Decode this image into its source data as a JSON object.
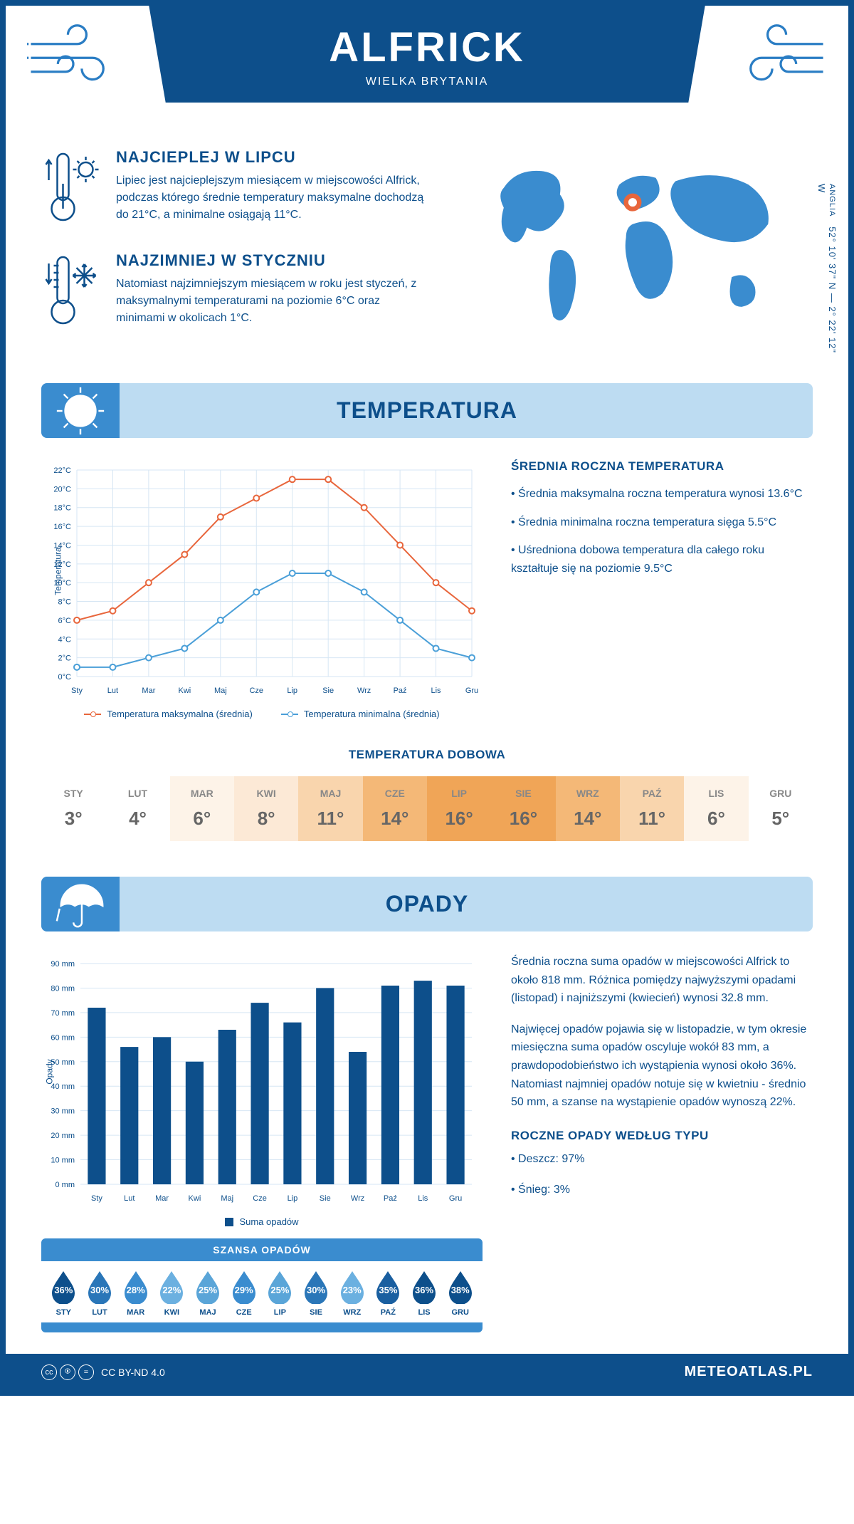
{
  "header": {
    "title": "ALFRICK",
    "subtitle": "WIELKA BRYTANIA"
  },
  "summary": {
    "warmest": {
      "title": "NAJCIEPLEJ W LIPCU",
      "text": "Lipiec jest najcieplejszym miesiącem w miejscowości Alfrick, podczas którego średnie temperatury maksymalne dochodzą do 21°C, a minimalne osiągają 11°C."
    },
    "coldest": {
      "title": "NAJZIMNIEJ W STYCZNIU",
      "text": "Natomiast najzimniejszym miesiącem w roku jest styczeń, z maksymalnymi temperaturami na poziomie 6°C oraz minimami w okolicach 1°C."
    },
    "coords": "52° 10' 37\" N — 2° 22' 12\" W",
    "region": "ANGLIA"
  },
  "temperature": {
    "banner_title": "TEMPERATURA",
    "chart": {
      "type": "line",
      "months": [
        "Sty",
        "Lut",
        "Mar",
        "Kwi",
        "Maj",
        "Cze",
        "Lip",
        "Sie",
        "Wrz",
        "Paź",
        "Lis",
        "Gru"
      ],
      "series_max": {
        "label": "Temperatura maksymalna (średnia)",
        "color": "#e8663c",
        "values": [
          6,
          7,
          10,
          13,
          17,
          19,
          21,
          21,
          18,
          14,
          10,
          7
        ]
      },
      "series_min": {
        "label": "Temperatura minimalna (średnia)",
        "color": "#4a9fd8",
        "values": [
          1,
          1,
          2,
          3,
          6,
          9,
          11,
          11,
          9,
          6,
          3,
          2
        ]
      },
      "ylabel": "Temperatura",
      "ylim": [
        0,
        22
      ],
      "ytick_step": 2,
      "grid_color": "#d6e6f4",
      "bg": "#ffffff",
      "label_fontsize": 11
    },
    "info": {
      "title": "ŚREDNIA ROCZNA TEMPERATURA",
      "bullets": [
        "• Średnia maksymalna roczna temperatura wynosi 13.6°C",
        "• Średnia minimalna roczna temperatura sięga 5.5°C",
        "• Uśredniona dobowa temperatura dla całego roku kształtuje się na poziomie 9.5°C"
      ]
    },
    "daily": {
      "title": "TEMPERATURA DOBOWA",
      "months": [
        "STY",
        "LUT",
        "MAR",
        "KWI",
        "MAJ",
        "CZE",
        "LIP",
        "SIE",
        "WRZ",
        "PAŹ",
        "LIS",
        "GRU"
      ],
      "values": [
        "3°",
        "4°",
        "6°",
        "8°",
        "11°",
        "14°",
        "16°",
        "16°",
        "14°",
        "11°",
        "6°",
        "5°"
      ],
      "colors": [
        "#ffffff",
        "#ffffff",
        "#fdf3e8",
        "#fce9d6",
        "#f9d5ad",
        "#f4b877",
        "#f0a557",
        "#f0a557",
        "#f4b877",
        "#f9d5ad",
        "#fdf3e8",
        "#ffffff"
      ]
    }
  },
  "precipitation": {
    "banner_title": "OPADY",
    "chart": {
      "type": "bar",
      "months": [
        "Sty",
        "Lut",
        "Mar",
        "Kwi",
        "Maj",
        "Cze",
        "Lip",
        "Sie",
        "Wrz",
        "Paź",
        "Lis",
        "Gru"
      ],
      "values": [
        72,
        56,
        60,
        50,
        63,
        74,
        66,
        80,
        54,
        81,
        83,
        81
      ],
      "bar_color": "#0d4f8b",
      "ylabel": "Opady",
      "ylim": [
        0,
        90
      ],
      "ytick_step": 10,
      "grid_color": "#d6e6f4",
      "legend_label": "Suma opadów"
    },
    "text1": "Średnia roczna suma opadów w miejscowości Alfrick to około 818 mm. Różnica pomiędzy najwyższymi opadami (listopad) i najniższymi (kwiecień) wynosi 32.8 mm.",
    "text2": "Najwięcej opadów pojawia się w listopadzie, w tym okresie miesięczna suma opadów oscyluje wokół 83 mm, a prawdopodobieństwo ich wystąpienia wynosi około 36%. Natomiast najmniej opadów notuje się w kwietniu - średnio 50 mm, a szanse na wystąpienie opadów wynoszą 22%.",
    "by_type": {
      "title": "ROCZNE OPADY WEDŁUG TYPU",
      "rain": "• Deszcz: 97%",
      "snow": "• Śnieg: 3%"
    },
    "chance": {
      "title": "SZANSA OPADÓW",
      "months": [
        "STY",
        "LUT",
        "MAR",
        "KWI",
        "MAJ",
        "CZE",
        "LIP",
        "SIE",
        "WRZ",
        "PAŹ",
        "LIS",
        "GRU"
      ],
      "values": [
        "36%",
        "30%",
        "28%",
        "22%",
        "25%",
        "29%",
        "25%",
        "30%",
        "23%",
        "35%",
        "36%",
        "38%"
      ],
      "colors": [
        "#0d4f8b",
        "#2a76b8",
        "#3a8ccf",
        "#6bb0e0",
        "#5aa5d8",
        "#3a8ccf",
        "#5aa5d8",
        "#2a76b8",
        "#6bb0e0",
        "#1a5fa0",
        "#0d4f8b",
        "#0d4f8b"
      ]
    }
  },
  "footer": {
    "license": "CC BY-ND 4.0",
    "site": "METEOATLAS.PL"
  },
  "accent_color": "#0d4f8b",
  "light_blue": "#bddcf2",
  "mid_blue": "#3a8ccf"
}
